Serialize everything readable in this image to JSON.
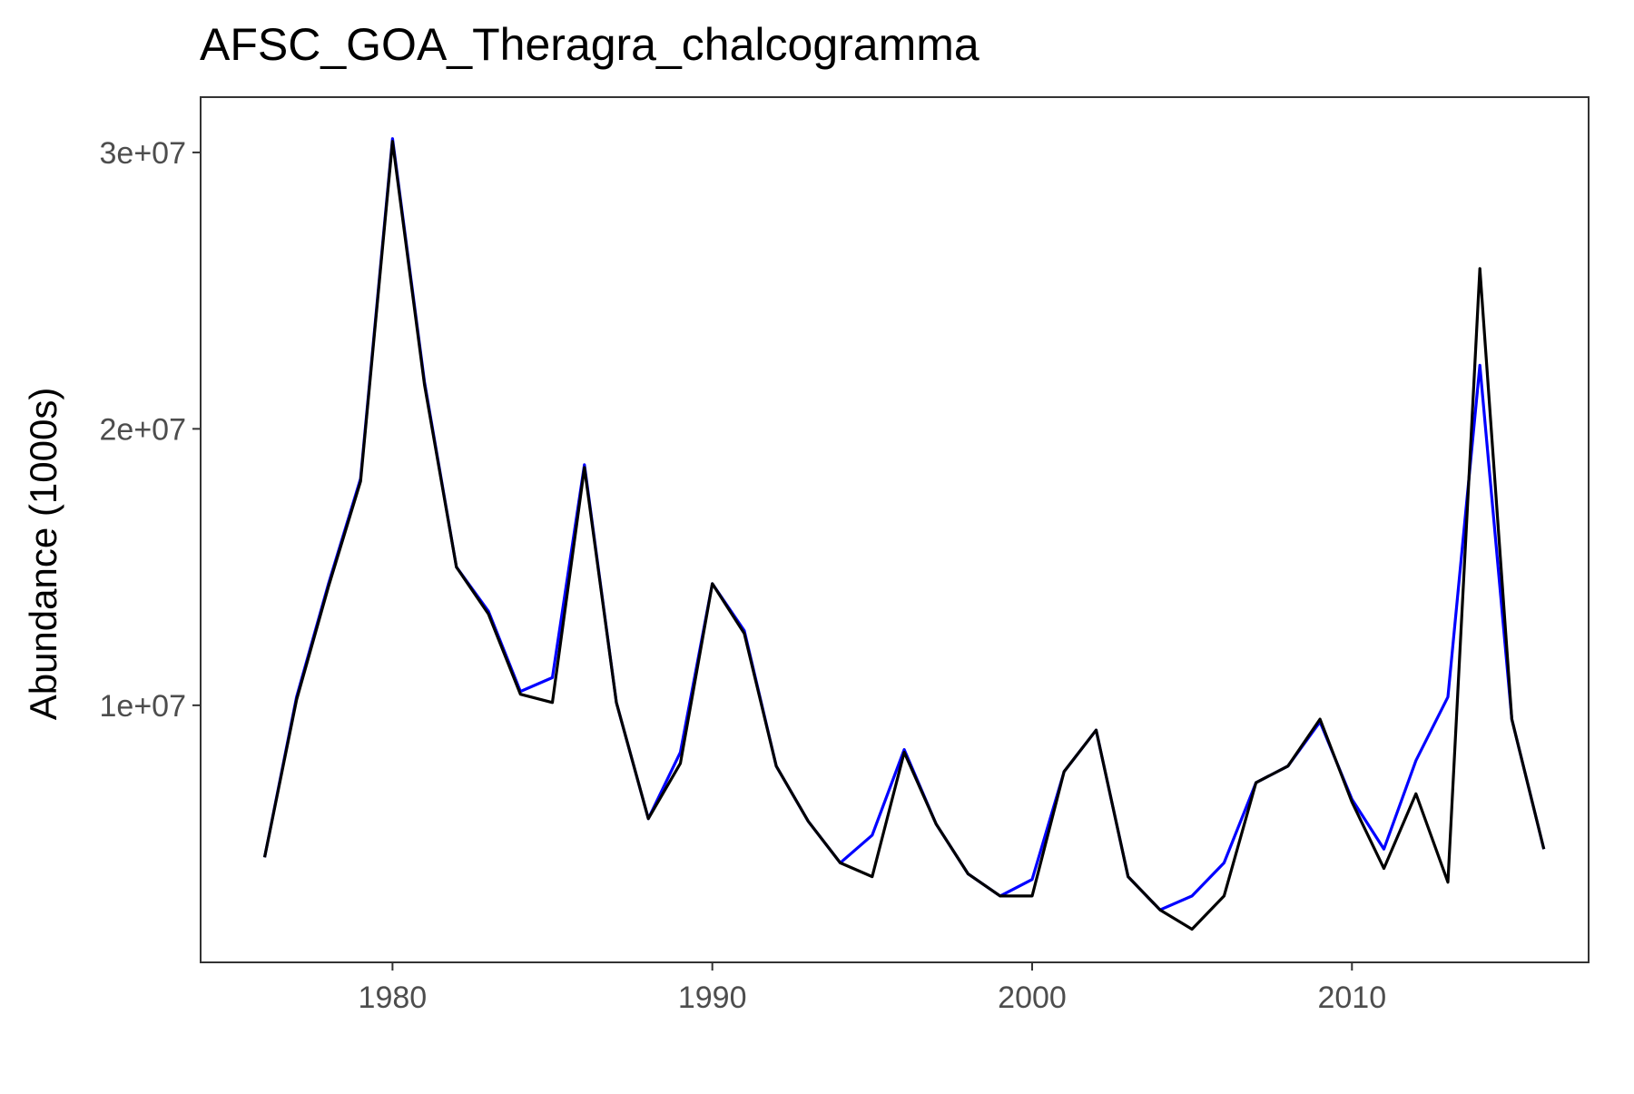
{
  "chart_data": {
    "type": "line",
    "title": "AFSC_GOA_Theragra_chalcogramma",
    "xlabel": "",
    "ylabel": "Abundance (1000s)",
    "xlim": [
      1974,
      2017.4
    ],
    "ylim": [
      700000,
      32000000
    ],
    "x_ticks": [
      1980,
      1990,
      2000,
      2010
    ],
    "x_tick_labels": [
      "1980",
      "1990",
      "2000",
      "2010"
    ],
    "y_ticks": [
      10000000,
      20000000,
      30000000
    ],
    "y_tick_labels": [
      "1e+07",
      "2e+07",
      "3e+07"
    ],
    "grid": false,
    "legend": "none",
    "x": [
      1976,
      1977,
      1978,
      1979,
      1980,
      1981,
      1982,
      1983,
      1984,
      1985,
      1986,
      1987,
      1988,
      1989,
      1990,
      1991,
      1992,
      1993,
      1994,
      1995,
      1996,
      1997,
      1998,
      1999,
      2000,
      2001,
      2002,
      2003,
      2004,
      2005,
      2006,
      2007,
      2008,
      2009,
      2010,
      2011,
      2012,
      2013,
      2014,
      2015,
      2016
    ],
    "series": [
      {
        "color": "#0000ff",
        "values": [
          4500000,
          10300000,
          14400000,
          18200000,
          30500000,
          21700000,
          15000000,
          13400000,
          10500000,
          11000000,
          18700000,
          10100000,
          5900000,
          8300000,
          14400000,
          12700000,
          7800000,
          5800000,
          4300000,
          5300000,
          8400000,
          5700000,
          3900000,
          3100000,
          3700000,
          7600000,
          9100000,
          3800000,
          2600000,
          3100000,
          4300000,
          7200000,
          7800000,
          9400000,
          6600000,
          4800000,
          8000000,
          10300000,
          22300000,
          9500000,
          4800000
        ]
      },
      {
        "color": "#000000",
        "values": [
          4500000,
          10200000,
          14300000,
          18100000,
          30400000,
          21600000,
          15000000,
          13300000,
          10400000,
          10100000,
          18600000,
          10100000,
          5900000,
          7900000,
          14400000,
          12600000,
          7800000,
          5800000,
          4300000,
          3800000,
          8300000,
          5700000,
          3900000,
          3100000,
          3100000,
          7600000,
          9100000,
          3800000,
          2600000,
          1900000,
          3100000,
          7200000,
          7800000,
          9500000,
          6500000,
          4100000,
          6800000,
          3600000,
          25800000,
          9500000,
          4800000
        ]
      }
    ]
  }
}
